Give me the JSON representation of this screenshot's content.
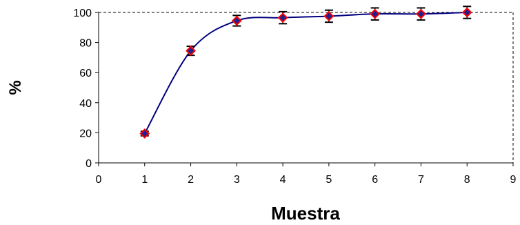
{
  "chart_data": {
    "type": "scatter",
    "title": "",
    "xlabel": "Muestra",
    "ylabel": "%",
    "xlim": [
      0,
      9
    ],
    "ylim": [
      0,
      100
    ],
    "xticks": [
      0,
      1,
      2,
      3,
      4,
      5,
      6,
      7,
      8,
      9
    ],
    "yticks": [
      0,
      20,
      40,
      60,
      80,
      100
    ],
    "grid": false,
    "legend": "none",
    "colors": {
      "marker_fill": "#1f1f8f",
      "marker_edge": "#ff0000",
      "curve": "#000080",
      "error_bar": "#000000",
      "frame": "#000000"
    },
    "series": [
      {
        "x": [
          1,
          2,
          3,
          4,
          5,
          6,
          7,
          8
        ],
        "y": [
          19.5,
          74.5,
          94.5,
          96.5,
          97.5,
          99,
          99,
          100
        ],
        "yerr": [
          1.5,
          3,
          3.5,
          4,
          4,
          4,
          4,
          4
        ]
      }
    ]
  }
}
